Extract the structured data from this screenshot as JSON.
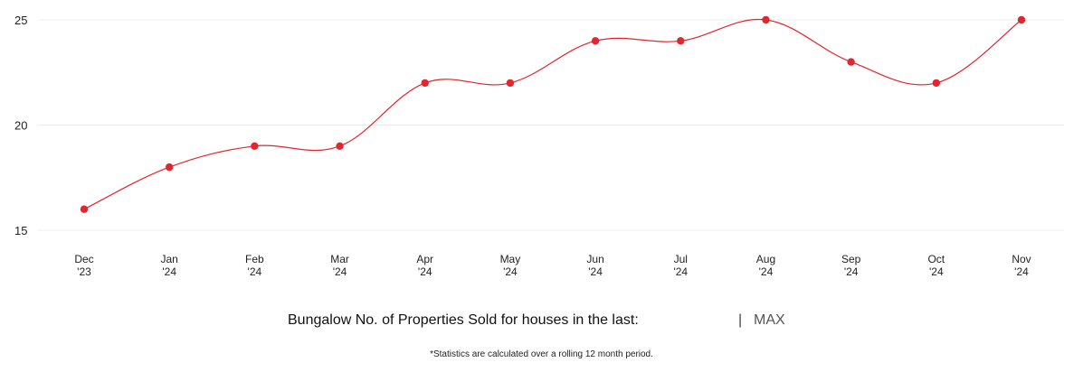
{
  "chart_data": {
    "type": "line",
    "categories": [
      [
        "Dec",
        "'23"
      ],
      [
        "Jan",
        "'24"
      ],
      [
        "Feb",
        "'24"
      ],
      [
        "Mar",
        "'24"
      ],
      [
        "Apr",
        "'24"
      ],
      [
        "May",
        "'24"
      ],
      [
        "Jun",
        "'24"
      ],
      [
        "Jul",
        "'24"
      ],
      [
        "Aug",
        "'24"
      ],
      [
        "Sep",
        "'24"
      ],
      [
        "Oct",
        "'24"
      ],
      [
        "Nov",
        "'24"
      ]
    ],
    "series": [
      {
        "values": [
          16,
          18,
          19,
          19,
          22,
          22,
          24,
          24,
          25,
          23,
          22,
          25
        ]
      }
    ],
    "yticks": [
      15,
      20,
      25
    ],
    "ylim": [
      15,
      25
    ],
    "grid": true,
    "line_color": "#e0262f"
  },
  "caption": {
    "label": "Bungalow No. of Properties Sold for houses in the last:",
    "separator": "|",
    "range_option": "MAX"
  },
  "footnote": "*Statistics are calculated over a rolling 12 month period."
}
